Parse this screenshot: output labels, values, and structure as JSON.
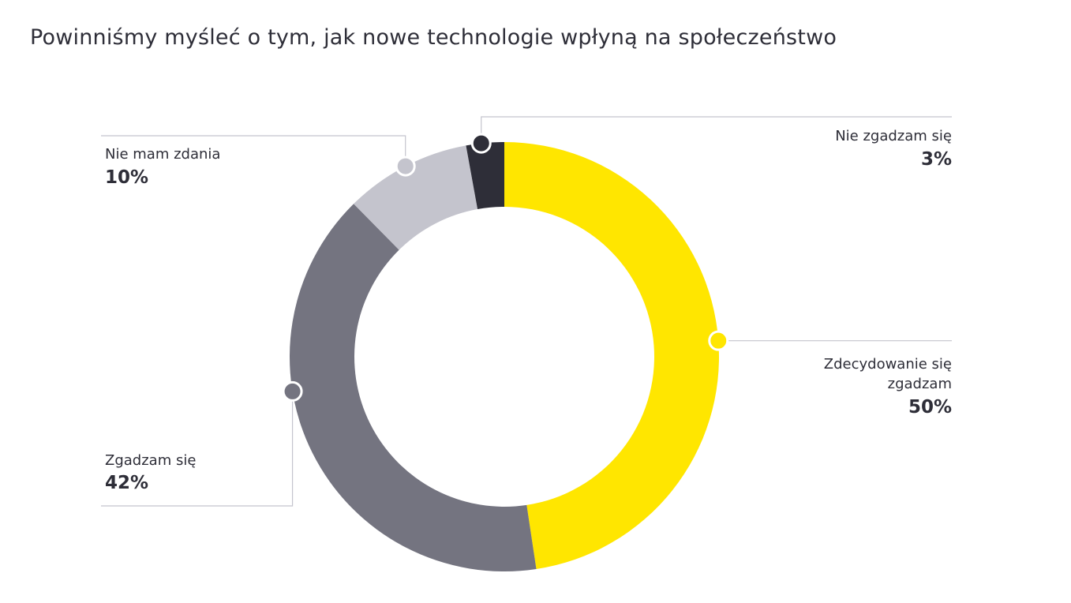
{
  "title": "Powinniśmy myśleć o tym, jak nowe technologie wpłyną na społeczeństwo",
  "chart_data": {
    "type": "pie",
    "variant": "donut",
    "title": "Powinniśmy myśleć o tym, jak nowe technologie wpłyną na społeczeństwo",
    "categories": [
      "Zdecydowanie się zgadzam",
      "Zgadzam się",
      "Nie mam zdania",
      "Nie zgadzam się"
    ],
    "values": [
      50,
      42,
      10,
      3
    ],
    "value_labels": [
      "50%",
      "42%",
      "10%",
      "3%"
    ],
    "label_lines": [
      [
        "Zdecydowanie się",
        "zgadzam"
      ],
      [
        "Zgadzam się"
      ],
      [
        "Nie mam zdania"
      ],
      [
        "Nie zgadzam się"
      ]
    ],
    "colors": [
      "#ffe600",
      "#747480",
      "#c4c4cd",
      "#2e2e38"
    ],
    "leader_line_color": "#c4c4cd",
    "legend": "none",
    "start": "top",
    "direction": "clockwise"
  }
}
